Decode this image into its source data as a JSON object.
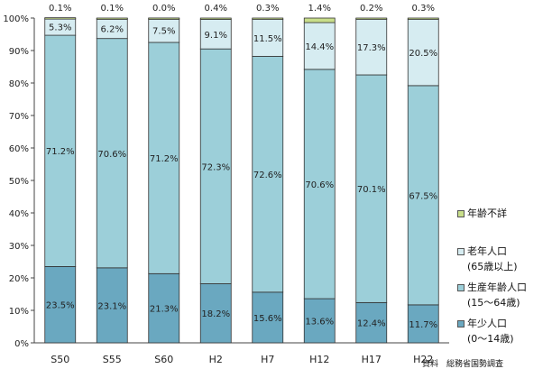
{
  "chart_data": {
    "type": "bar",
    "stacked": true,
    "categories": [
      "S50",
      "S55",
      "S60",
      "H2",
      "H7",
      "H12",
      "H17",
      "H22"
    ],
    "series": [
      {
        "name": "年少人口",
        "name_sub": "(0～14歳)",
        "values": [
          23.5,
          23.1,
          21.3,
          18.2,
          15.6,
          13.6,
          12.4,
          11.7
        ],
        "color": "#6aa8c0"
      },
      {
        "name": "生産年齢人口",
        "name_sub": "(15～64歳)",
        "values": [
          71.2,
          70.6,
          71.2,
          72.3,
          72.6,
          70.6,
          70.1,
          67.5
        ],
        "color": "#9ccfd9"
      },
      {
        "name": "老年人口",
        "name_sub": "(65歳以上)",
        "values": [
          5.3,
          6.2,
          7.5,
          9.1,
          11.5,
          14.4,
          17.3,
          20.5
        ],
        "color": "#d6ecf1"
      },
      {
        "name": "年齢不詳",
        "name_sub": "",
        "values": [
          0.1,
          0.1,
          0.0,
          0.4,
          0.3,
          1.4,
          0.2,
          0.3
        ],
        "color": "#c8de8a"
      }
    ],
    "value_labels": [
      [
        "23.5%",
        "23.1%",
        "21.3%",
        "18.2%",
        "15.6%",
        "13.6%",
        "12.4%",
        "11.7%"
      ],
      [
        "71.2%",
        "70.6%",
        "71.2%",
        "72.3%",
        "72.6%",
        "70.6%",
        "70.1%",
        "67.5%"
      ],
      [
        "5.3%",
        "6.2%",
        "7.5%",
        "9.1%",
        "11.5%",
        "14.4%",
        "17.3%",
        "20.5%"
      ],
      [
        "0.1%",
        "0.1%",
        "0.0%",
        "0.4%",
        "0.3%",
        "1.4%",
        "0.2%",
        "0.3%"
      ]
    ],
    "ylim": [
      0,
      100
    ],
    "yticks": [
      "0%",
      "10%",
      "20%",
      "30%",
      "40%",
      "50%",
      "60%",
      "70%",
      "80%",
      "90%",
      "100%"
    ],
    "grid": false,
    "legend_position": "right",
    "legend_order": [
      3,
      2,
      1,
      0
    ]
  },
  "source": "資料　総務省国勢調査"
}
